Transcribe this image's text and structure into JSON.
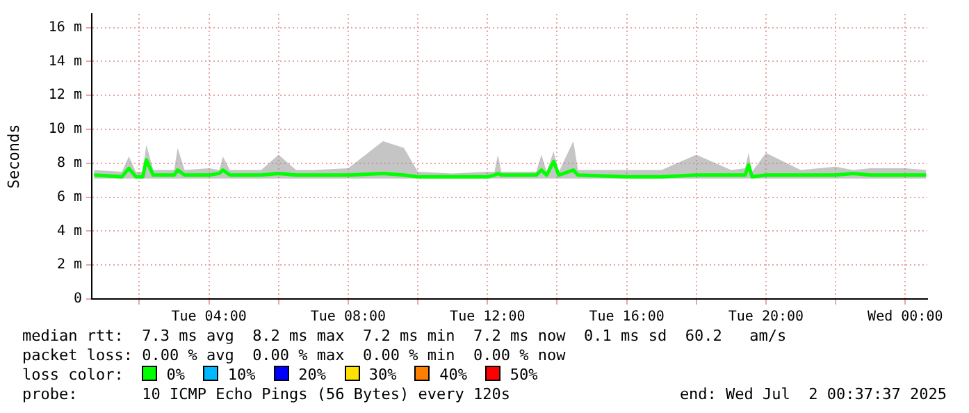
{
  "chart_data": {
    "type": "line",
    "ylabel": "Seconds",
    "x": [
      "2025-07-01T00:42",
      "2025-07-01T01:30",
      "2025-07-01T01:42",
      "2025-07-01T01:54",
      "2025-07-01T02:06",
      "2025-07-01T02:12",
      "2025-07-01T02:24",
      "2025-07-01T03:00",
      "2025-07-01T03:06",
      "2025-07-01T03:18",
      "2025-07-01T04:00",
      "2025-07-01T04:18",
      "2025-07-01T04:24",
      "2025-07-01T04:36",
      "2025-07-01T05:30",
      "2025-07-01T06:00",
      "2025-07-01T06:30",
      "2025-07-01T07:00",
      "2025-07-01T08:00",
      "2025-07-01T09:00",
      "2025-07-01T09:36",
      "2025-07-01T10:00",
      "2025-07-01T11:00",
      "2025-07-01T12:00",
      "2025-07-01T12:12",
      "2025-07-01T12:18",
      "2025-07-01T12:24",
      "2025-07-01T13:24",
      "2025-07-01T13:33",
      "2025-07-01T13:42",
      "2025-07-01T13:54",
      "2025-07-01T14:03",
      "2025-07-01T14:28",
      "2025-07-01T14:36",
      "2025-07-01T16:00",
      "2025-07-01T17:00",
      "2025-07-01T18:00",
      "2025-07-01T19:00",
      "2025-07-01T19:24",
      "2025-07-01T19:30",
      "2025-07-01T19:36",
      "2025-07-01T20:00",
      "2025-07-01T21:00",
      "2025-07-01T22:00",
      "2025-07-01T22:30",
      "2025-07-01T23:00",
      "2025-07-02T00:00",
      "2025-07-02T00:36"
    ],
    "series": [
      {
        "name": "0%",
        "color": "#00ff00",
        "values": [
          7.3,
          7.2,
          7.7,
          7.2,
          7.2,
          8.2,
          7.3,
          7.3,
          7.6,
          7.3,
          7.3,
          7.4,
          7.6,
          7.3,
          7.3,
          7.4,
          7.3,
          7.3,
          7.3,
          7.4,
          7.3,
          7.2,
          7.2,
          7.2,
          7.3,
          7.4,
          7.3,
          7.3,
          7.6,
          7.3,
          8.1,
          7.3,
          7.6,
          7.3,
          7.2,
          7.2,
          7.3,
          7.3,
          7.3,
          7.9,
          7.2,
          7.3,
          7.3,
          7.3,
          7.4,
          7.3,
          7.3,
          7.3
        ],
        "lower": [
          7.1,
          7.1,
          7.1,
          7.1,
          7.1,
          7.1,
          7.1,
          7.1,
          7.1,
          7.1,
          7.1,
          7.1,
          7.1,
          7.1,
          7.1,
          7.1,
          7.1,
          7.1,
          7.1,
          7.1,
          7.1,
          7.1,
          7.1,
          7.1,
          7.1,
          7.1,
          7.1,
          7.1,
          7.1,
          7.1,
          7.1,
          7.1,
          7.1,
          7.1,
          7.1,
          7.1,
          7.1,
          7.1,
          7.1,
          7.1,
          7.1,
          7.1,
          7.1,
          7.1,
          7.1,
          7.1,
          7.1,
          7.1
        ],
        "upper": [
          7.6,
          7.5,
          8.4,
          7.5,
          7.5,
          9.1,
          7.6,
          7.6,
          8.9,
          7.6,
          7.7,
          7.6,
          8.4,
          7.6,
          7.6,
          8.5,
          7.6,
          7.6,
          7.7,
          9.3,
          8.9,
          7.5,
          7.4,
          7.5,
          7.5,
          8.5,
          7.5,
          7.5,
          8.5,
          7.5,
          8.7,
          7.5,
          9.3,
          7.6,
          7.6,
          7.6,
          8.5,
          7.6,
          7.7,
          8.6,
          7.5,
          8.6,
          7.6,
          7.8,
          7.6,
          7.7,
          7.7,
          7.6
        ]
      },
      {
        "name": "10%",
        "color": "#00b8ff",
        "values": [
          null,
          null,
          null,
          null,
          null,
          null,
          null,
          null,
          null,
          null,
          null,
          null,
          null,
          null,
          null,
          null,
          null,
          null,
          null,
          null,
          null,
          null,
          null,
          null,
          null,
          null,
          null,
          null,
          null,
          null,
          null,
          null,
          null,
          null,
          null,
          null,
          null,
          null,
          null,
          null,
          null,
          null,
          null,
          null,
          null,
          null,
          null,
          null
        ]
      },
      {
        "name": "20%",
        "color": "#0000ff",
        "values": [
          null,
          null,
          null,
          null,
          null,
          null,
          null,
          null,
          null,
          null,
          null,
          null,
          null,
          null,
          null,
          null,
          null,
          null,
          null,
          null,
          null,
          null,
          null,
          null,
          null,
          null,
          null,
          null,
          null,
          null,
          null,
          null,
          null,
          null,
          null,
          null,
          null,
          null,
          null,
          null,
          null,
          null,
          null,
          null,
          null,
          null,
          null,
          null
        ]
      },
      {
        "name": "30%",
        "color": "#ffe000",
        "values": [
          null,
          null,
          null,
          null,
          null,
          null,
          null,
          null,
          null,
          null,
          null,
          null,
          null,
          null,
          null,
          null,
          null,
          null,
          null,
          null,
          null,
          null,
          null,
          null,
          null,
          null,
          null,
          null,
          null,
          null,
          null,
          null,
          null,
          null,
          null,
          null,
          null,
          null,
          null,
          null,
          null,
          null,
          null,
          null,
          null,
          null,
          null,
          null
        ]
      },
      {
        "name": "40%",
        "color": "#ff8000",
        "values": [
          null,
          null,
          null,
          null,
          null,
          null,
          null,
          null,
          null,
          null,
          null,
          null,
          null,
          null,
          null,
          null,
          null,
          null,
          null,
          null,
          null,
          null,
          null,
          null,
          null,
          null,
          null,
          null,
          null,
          null,
          null,
          null,
          null,
          null,
          null,
          null,
          null,
          null,
          null,
          null,
          null,
          null,
          null,
          null,
          null,
          null,
          null,
          null
        ]
      },
      {
        "name": "50%",
        "color": "#ff0000",
        "values": [
          null,
          null,
          null,
          null,
          null,
          null,
          null,
          null,
          null,
          null,
          null,
          null,
          null,
          null,
          null,
          null,
          null,
          null,
          null,
          null,
          null,
          null,
          null,
          null,
          null,
          null,
          null,
          null,
          null,
          null,
          null,
          null,
          null,
          null,
          null,
          null,
          null,
          null,
          null,
          null,
          null,
          null,
          null,
          null,
          null,
          null,
          null,
          null
        ]
      }
    ],
    "xlim": [
      "2025-07-01T00:38",
      "2025-07-02T00:38"
    ],
    "xticks": [
      {
        "value": "2025-07-01T02:00",
        "label": null
      },
      {
        "value": "2025-07-01T04:00",
        "label": "Tue 04:00"
      },
      {
        "value": "2025-07-01T06:00",
        "label": null
      },
      {
        "value": "2025-07-01T08:00",
        "label": "Tue 08:00"
      },
      {
        "value": "2025-07-01T10:00",
        "label": null
      },
      {
        "value": "2025-07-01T12:00",
        "label": "Tue 12:00"
      },
      {
        "value": "2025-07-01T14:00",
        "label": null
      },
      {
        "value": "2025-07-01T16:00",
        "label": "Tue 16:00"
      },
      {
        "value": "2025-07-01T18:00",
        "label": null
      },
      {
        "value": "2025-07-01T20:00",
        "label": "Tue 20:00"
      },
      {
        "value": "2025-07-01T22:00",
        "label": null
      },
      {
        "value": "2025-07-02T00:00",
        "label": "Wed 00:00"
      }
    ],
    "ylim": [
      0,
      16.8
    ],
    "yticks": [
      0,
      {
        "value": 2,
        "label": "2 m"
      },
      {
        "value": 4,
        "label": "4 m"
      },
      {
        "value": 6,
        "label": "6 m"
      },
      {
        "value": 8,
        "label": "8 m"
      },
      {
        "value": 10,
        "label": "10 m"
      },
      {
        "value": 12,
        "label": "12 m"
      },
      {
        "value": 14,
        "label": "14 m"
      },
      {
        "value": 16,
        "label": "16 m"
      }
    ],
    "grid": true,
    "legend": "bottom",
    "legend_title": "loss color:",
    "annotations": [
      "median rtt:  7.3 ms avg  8.2 ms max  7.2 ms min  7.2 ms now  0.1 ms sd  60.2   am/s",
      "packet loss: 0.00 % avg  0.00 % max  0.00 % min  0.00 % now",
      "probe:       10 ICMP Echo Pings (56 Bytes) every 120s",
      "end: Wed Jul  2 00:37:37 2025"
    ]
  }
}
